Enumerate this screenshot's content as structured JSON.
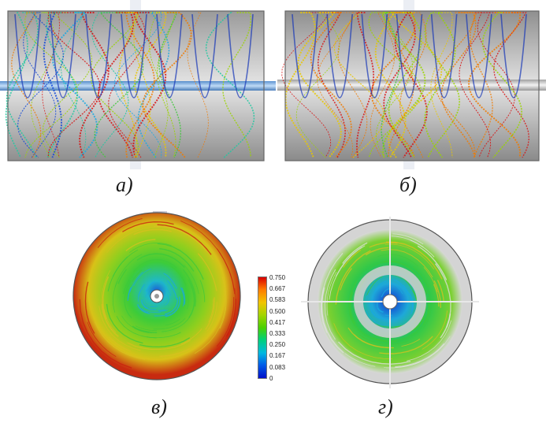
{
  "captions": {
    "a": "а)",
    "b": "б)",
    "v": "в)",
    "g": "г)"
  },
  "legend": {
    "labels": [
      "0.750",
      "0.667",
      "0.583",
      "0.500",
      "0.417",
      "0.333",
      "0.250",
      "0.167",
      "0.083",
      "0"
    ]
  },
  "colors": {
    "high": "#d80000",
    "mid_high": "#f2c400",
    "mid": "#4ad000",
    "mid_low": "#00b8e0",
    "low": "#0010c8",
    "housing": "#c8c8c8"
  }
}
